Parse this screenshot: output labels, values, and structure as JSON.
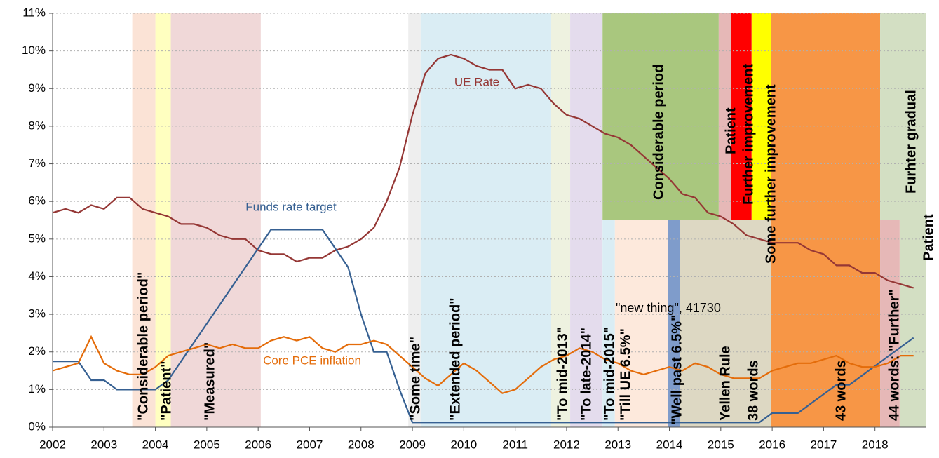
{
  "chart_data": {
    "type": "line",
    "x": [
      2002,
      2002.25,
      2002.5,
      2002.75,
      2003,
      2003.25,
      2003.5,
      2003.75,
      2004,
      2004.25,
      2004.5,
      2004.75,
      2005,
      2005.25,
      2005.5,
      2005.75,
      2006,
      2006.25,
      2006.5,
      2006.75,
      2007,
      2007.25,
      2007.5,
      2007.75,
      2008,
      2008.25,
      2008.5,
      2008.75,
      2009,
      2009.25,
      2009.5,
      2009.75,
      2010,
      2010.25,
      2010.5,
      2010.75,
      2011,
      2011.25,
      2011.5,
      2011.75,
      2012,
      2012.25,
      2012.5,
      2012.75,
      2013,
      2013.25,
      2013.5,
      2013.75,
      2014,
      2014.25,
      2014.5,
      2014.75,
      2015,
      2015.25,
      2015.5,
      2015.75,
      2016,
      2016.25,
      2016.5,
      2016.75,
      2017,
      2017.25,
      2017.5,
      2017.75,
      2018,
      2018.25,
      2018.5,
      2018.75
    ],
    "series": [
      {
        "name": "UE Rate",
        "color": "#953735",
        "values": [
          5.7,
          5.8,
          5.7,
          5.9,
          5.8,
          6.1,
          6.1,
          5.8,
          5.7,
          5.6,
          5.4,
          5.4,
          5.3,
          5.1,
          5.0,
          5.0,
          4.7,
          4.6,
          4.6,
          4.4,
          4.5,
          4.5,
          4.7,
          4.8,
          5.0,
          5.3,
          6.0,
          6.9,
          8.3,
          9.4,
          9.8,
          9.9,
          9.8,
          9.6,
          9.5,
          9.5,
          9.0,
          9.1,
          9.0,
          8.6,
          8.3,
          8.2,
          8.0,
          7.8,
          7.7,
          7.5,
          7.2,
          6.9,
          6.6,
          6.2,
          6.1,
          5.7,
          5.6,
          5.4,
          5.1,
          5.0,
          4.9,
          4.9,
          4.9,
          4.7,
          4.6,
          4.3,
          4.3,
          4.1,
          4.1,
          3.9,
          3.8,
          3.7
        ]
      },
      {
        "name": "Funds rate target",
        "color": "#366092",
        "values": [
          1.75,
          1.75,
          1.75,
          1.25,
          1.25,
          1.0,
          1.0,
          1.0,
          1.0,
          1.25,
          1.75,
          2.25,
          2.75,
          3.25,
          3.75,
          4.25,
          4.75,
          5.25,
          5.25,
          5.25,
          5.25,
          5.25,
          4.75,
          4.25,
          3.0,
          2.0,
          2.0,
          1.0,
          0.125,
          0.125,
          0.125,
          0.125,
          0.125,
          0.125,
          0.125,
          0.125,
          0.125,
          0.125,
          0.125,
          0.125,
          0.125,
          0.125,
          0.125,
          0.125,
          0.125,
          0.125,
          0.125,
          0.125,
          0.125,
          0.125,
          0.125,
          0.125,
          0.125,
          0.125,
          0.125,
          0.125,
          0.375,
          0.375,
          0.375,
          0.625,
          0.875,
          1.125,
          1.125,
          1.375,
          1.625,
          1.875,
          2.125,
          2.375
        ]
      },
      {
        "name": "Core PCE inflation",
        "color": "#e46c0a",
        "values": [
          1.5,
          1.6,
          1.7,
          2.4,
          1.7,
          1.5,
          1.4,
          1.4,
          1.6,
          1.9,
          2.0,
          2.1,
          2.2,
          2.1,
          2.2,
          2.1,
          2.1,
          2.3,
          2.4,
          2.3,
          2.4,
          2.1,
          2.0,
          2.2,
          2.2,
          2.3,
          2.2,
          1.9,
          1.6,
          1.3,
          1.1,
          1.4,
          1.7,
          1.5,
          1.2,
          0.9,
          1.0,
          1.3,
          1.6,
          1.8,
          1.9,
          2.1,
          2.0,
          1.8,
          1.7,
          1.5,
          1.4,
          1.5,
          1.6,
          1.5,
          1.7,
          1.6,
          1.4,
          1.3,
          1.3,
          1.3,
          1.5,
          1.6,
          1.7,
          1.7,
          1.8,
          1.9,
          1.7,
          1.6,
          1.6,
          1.7,
          1.9,
          1.9
        ]
      }
    ],
    "bands": [
      {
        "start": 2003.55,
        "end": 2004.0,
        "bottom": 0,
        "top": 11,
        "color": "#fbe3d6"
      },
      {
        "start": 2004.0,
        "end": 2004.3,
        "bottom": 0,
        "top": 11,
        "color": "#ffffc0"
      },
      {
        "start": 2004.3,
        "end": 2006.05,
        "bottom": 0,
        "top": 11,
        "color": "#f0d8d8"
      },
      {
        "start": 2008.92,
        "end": 2009.16,
        "bottom": 0,
        "top": 11,
        "color": "#eeeeee"
      },
      {
        "start": 2009.16,
        "end": 2011.7,
        "bottom": 0,
        "top": 11,
        "color": "#daedf4"
      },
      {
        "start": 2011.7,
        "end": 2012.07,
        "bottom": 0,
        "top": 11,
        "color": "#eef2e0"
      },
      {
        "start": 2012.07,
        "end": 2012.7,
        "bottom": 0,
        "top": 11,
        "color": "#e4dced"
      },
      {
        "start": 2012.7,
        "end": 2014.96,
        "bottom": 5.5,
        "top": 11,
        "color": "#a9c77e"
      },
      {
        "start": 2012.7,
        "end": 2012.94,
        "bottom": 0,
        "top": 5.5,
        "color": "#daedf4"
      },
      {
        "start": 2012.94,
        "end": 2013.97,
        "bottom": 0,
        "top": 5.5,
        "color": "#fde9dc"
      },
      {
        "start": 2013.97,
        "end": 2014.2,
        "bottom": 0,
        "top": 5.5,
        "color": "#7f9ccb"
      },
      {
        "start": 2014.2,
        "end": 2015.98,
        "bottom": 0,
        "top": 5.5,
        "color": "#ddd8c3"
      },
      {
        "start": 2014.96,
        "end": 2015.2,
        "bottom": 5.5,
        "top": 11,
        "color": "#e6b8b7"
      },
      {
        "start": 2015.2,
        "end": 2015.6,
        "bottom": 5.5,
        "top": 11,
        "color": "#ff0000"
      },
      {
        "start": 2015.6,
        "end": 2015.98,
        "bottom": 5.5,
        "top": 11,
        "color": "#ffff00"
      },
      {
        "start": 2015.98,
        "end": 2018.1,
        "bottom": 0,
        "top": 11,
        "color": "#f79646"
      },
      {
        "start": 2018.1,
        "end": 2019,
        "bottom": 5.5,
        "top": 11,
        "color": "#d3dfc3"
      },
      {
        "start": 2018.1,
        "end": 2018.48,
        "bottom": 0,
        "top": 5.5,
        "color": "#e6b8b7"
      },
      {
        "start": 2018.48,
        "end": 2019,
        "bottom": 0,
        "top": 5.5,
        "color": "#d3dfc3"
      }
    ],
    "annotations": [
      "\"Considerable period\"",
      "\"Patient\"",
      "\"Measured\"",
      "\"Some time\"",
      "\"Extended period\"",
      "\"To mid-2013\"",
      "\"To late-2014\"",
      "\"To mid-2015\"",
      "\"Till UE 6.5%\"",
      "\"Well past 6.5%\"",
      "Yellen Rule",
      "38 words",
      "43 words",
      "44 words: \"Further\"",
      "Considerable period",
      "Patient",
      "Further improvement",
      "Some further improvement",
      "Furhter gradual",
      "Patient",
      "\"new thing\", 41730"
    ],
    "xlim": [
      2002,
      2019
    ],
    "xticks": [
      2002,
      2003,
      2004,
      2005,
      2006,
      2007,
      2008,
      2009,
      2010,
      2011,
      2012,
      2013,
      2014,
      2015,
      2016,
      2017,
      2018
    ],
    "ylim": [
      0,
      11
    ],
    "yticks": [
      {
        "value": 0,
        "label": "0%"
      },
      {
        "value": 1,
        "label": "1%"
      },
      {
        "value": 2,
        "label": "2%"
      },
      {
        "value": 3,
        "label": "3%"
      },
      {
        "value": 4,
        "label": "4%"
      },
      {
        "value": 5,
        "label": "5%"
      },
      {
        "value": 6,
        "label": "6%"
      },
      {
        "value": 7,
        "label": "7%"
      },
      {
        "value": 8,
        "label": "8%"
      },
      {
        "value": 9,
        "label": "9%"
      },
      {
        "value": 10,
        "label": "10%"
      },
      {
        "value": 11,
        "label": "11%"
      }
    ],
    "grid": true
  }
}
